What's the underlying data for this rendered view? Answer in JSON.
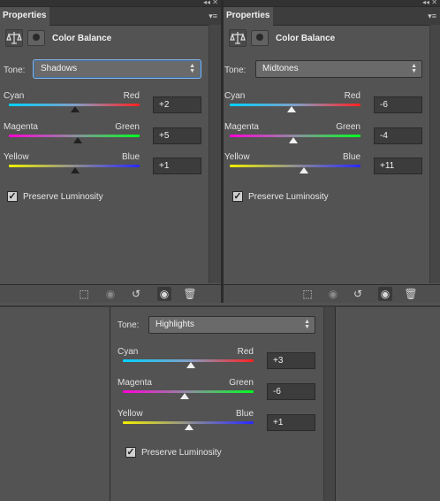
{
  "panels": [
    {
      "tab_label": "Properties",
      "title": "Color Balance",
      "tone_label": "Tone:",
      "tone_value": "Shadows",
      "sliders": [
        {
          "left": "Cyan",
          "right": "Red",
          "value": "+2"
        },
        {
          "left": "Magenta",
          "right": "Green",
          "value": "+5"
        },
        {
          "left": "Yellow",
          "right": "Blue",
          "value": "+1"
        }
      ],
      "preserve_label": "Preserve Luminosity"
    },
    {
      "tab_label": "Properties",
      "title": "Color Balance",
      "tone_label": "Tone:",
      "tone_value": "Midtones",
      "sliders": [
        {
          "left": "Cyan",
          "right": "Red",
          "value": "-6"
        },
        {
          "left": "Magenta",
          "right": "Green",
          "value": "-4"
        },
        {
          "left": "Yellow",
          "right": "Blue",
          "value": "+11"
        }
      ],
      "preserve_label": "Preserve Luminosity"
    },
    {
      "tone_label": "Tone:",
      "tone_value": "Highlights",
      "sliders": [
        {
          "left": "Cyan",
          "right": "Red",
          "value": "+3"
        },
        {
          "left": "Magenta",
          "right": "Green",
          "value": "-6"
        },
        {
          "left": "Yellow",
          "right": "Blue",
          "value": "+1"
        }
      ],
      "preserve_label": "Preserve Luminosity"
    }
  ],
  "icons": {
    "adjustment": "balance-scale-icon",
    "mask": "layer-mask-icon",
    "clip": "clip-to-layer-icon",
    "view_previous": "view-previous-state-icon",
    "reset": "reset-icon",
    "visibility": "eye-icon",
    "delete": "trash-icon",
    "menu": "panel-menu-icon"
  },
  "colors": {
    "panel_bg": "#535353",
    "tab_bar_bg": "#3d3d3d",
    "value_box_bg": "#3c3c3c"
  }
}
